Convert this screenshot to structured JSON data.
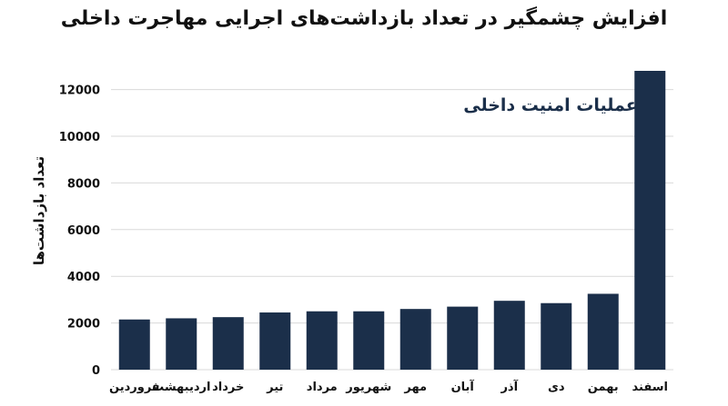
{
  "chart_data": {
    "type": "bar",
    "title": "افزایش چشمگیر در تعداد بازداشت‌های اجرایی مهاجرت داخلی",
    "ylabel": "تعداد بازداشت‌ها",
    "xlabel": "",
    "categories": [
      "فروردین",
      "اردیبهشت",
      "خرداد",
      "تیر",
      "مرداد",
      "شهریور",
      "مهر",
      "آبان",
      "آذر",
      "دی",
      "بهمن",
      "اسفند"
    ],
    "values": [
      2150,
      2200,
      2250,
      2450,
      2500,
      2500,
      2600,
      2700,
      2950,
      2850,
      3250,
      12800
    ],
    "ylim": [
      0,
      12800
    ],
    "yticks": [
      0,
      2000,
      4000,
      6000,
      8000,
      10000,
      12000
    ],
    "ytick_labels": [
      "0",
      "2000",
      "4000",
      "6000",
      "8000",
      "10000",
      "12000"
    ],
    "annotation": "عملیات امنیت داخلی",
    "grid": true,
    "bar_color": "#1b2f4a",
    "grid_color": "#d9d9d9"
  }
}
